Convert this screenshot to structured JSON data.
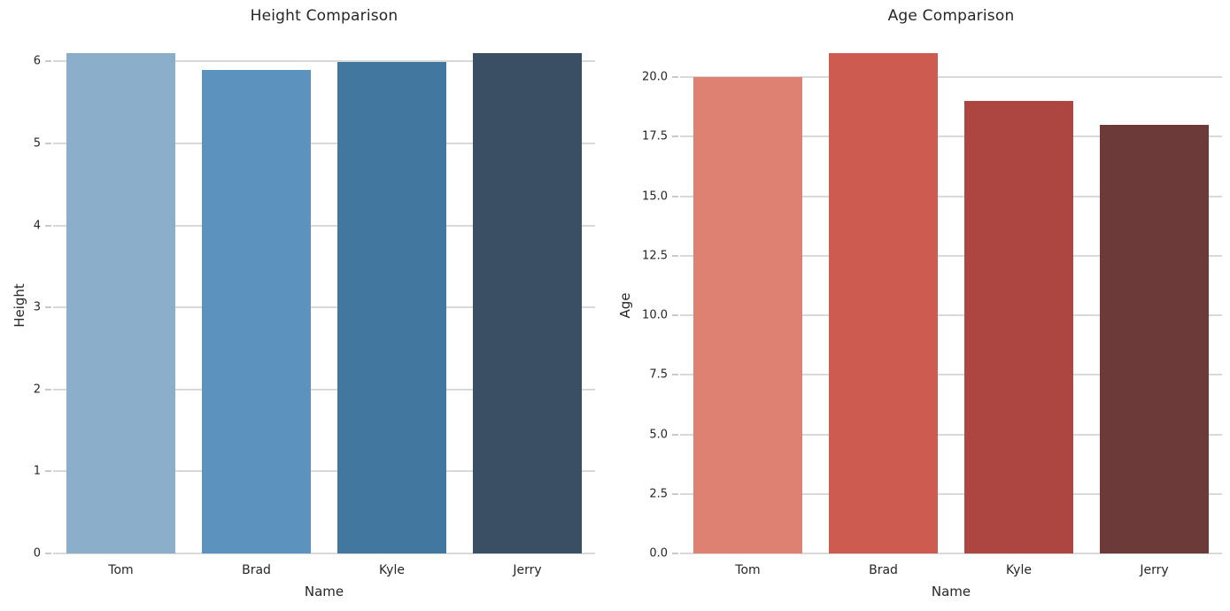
{
  "figure": {
    "background_color": "#ffffff",
    "grid_color": "#d9d9d9",
    "tick_color": "#c9c9c9",
    "text_color": "#262626"
  },
  "chart_data": [
    {
      "type": "bar",
      "title": "Height Comparison",
      "xlabel": "Name",
      "ylabel": "Height",
      "categories": [
        "Tom",
        "Brad",
        "Kyle",
        "Jerry"
      ],
      "values": [
        6.1,
        5.9,
        6.0,
        6.1
      ],
      "bar_colors": [
        "#8baeca",
        "#5c92be",
        "#42779f",
        "#3a4f63"
      ],
      "ylim": [
        0,
        6.405
      ],
      "yticks": [
        {
          "value": 0,
          "label": "0"
        },
        {
          "value": 1,
          "label": "1"
        },
        {
          "value": 2,
          "label": "2"
        },
        {
          "value": 3,
          "label": "3"
        },
        {
          "value": 4,
          "label": "4"
        },
        {
          "value": 5,
          "label": "5"
        },
        {
          "value": 6,
          "label": "6"
        }
      ],
      "grid": true,
      "legend": "none",
      "bar_rel_width": 0.8
    },
    {
      "type": "bar",
      "title": "Age Comparison",
      "xlabel": "Name",
      "ylabel": "Age",
      "categories": [
        "Tom",
        "Brad",
        "Kyle",
        "Jerry"
      ],
      "values": [
        20,
        21,
        19,
        18
      ],
      "bar_colors": [
        "#de8172",
        "#cd5b50",
        "#ad4540",
        "#6c3b39"
      ],
      "ylim": [
        0,
        22.05
      ],
      "yticks": [
        {
          "value": 0,
          "label": "0.0"
        },
        {
          "value": 2.5,
          "label": "2.5"
        },
        {
          "value": 5,
          "label": "5.0"
        },
        {
          "value": 7.5,
          "label": "7.5"
        },
        {
          "value": 10,
          "label": "10.0"
        },
        {
          "value": 12.5,
          "label": "12.5"
        },
        {
          "value": 15,
          "label": "15.0"
        },
        {
          "value": 17.5,
          "label": "17.5"
        },
        {
          "value": 20,
          "label": "20.0"
        }
      ],
      "grid": true,
      "legend": "none",
      "bar_rel_width": 0.8
    }
  ]
}
